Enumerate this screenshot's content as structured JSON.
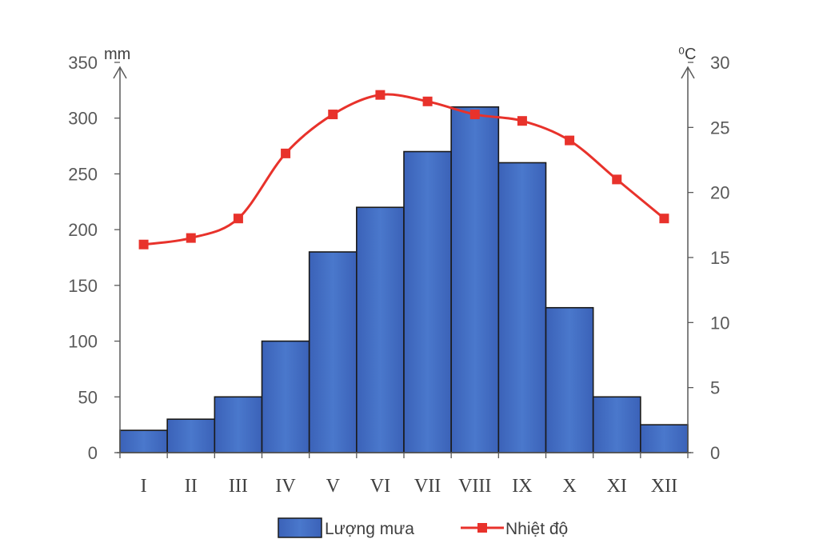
{
  "chart_data": {
    "type": "bar",
    "categories": [
      "I",
      "II",
      "III",
      "IV",
      "V",
      "VI",
      "VII",
      "VIII",
      "IX",
      "X",
      "XI",
      "XII"
    ],
    "series": [
      {
        "name": "Lượng mưa",
        "type": "bar",
        "axis": "left",
        "color": "#4472c4",
        "values": [
          20,
          30,
          50,
          100,
          180,
          220,
          270,
          310,
          260,
          130,
          50,
          25
        ]
      },
      {
        "name": "Nhiệt độ",
        "type": "line",
        "axis": "right",
        "color": "#e8322b",
        "values": [
          16,
          16.5,
          18,
          23,
          26,
          27.5,
          27,
          26,
          25.5,
          24,
          21,
          18
        ]
      }
    ],
    "left_axis": {
      "unit": "mm",
      "range": [
        0,
        350
      ],
      "ticks": [
        "0",
        "50",
        "100",
        "150",
        "200",
        "250",
        "300",
        "350"
      ]
    },
    "right_axis": {
      "unit": "⁰C",
      "range": [
        0,
        30
      ],
      "ticks": [
        "0",
        "5",
        "10",
        "15",
        "20",
        "25",
        "30"
      ]
    },
    "grid": false,
    "legend": "bottom-center"
  }
}
